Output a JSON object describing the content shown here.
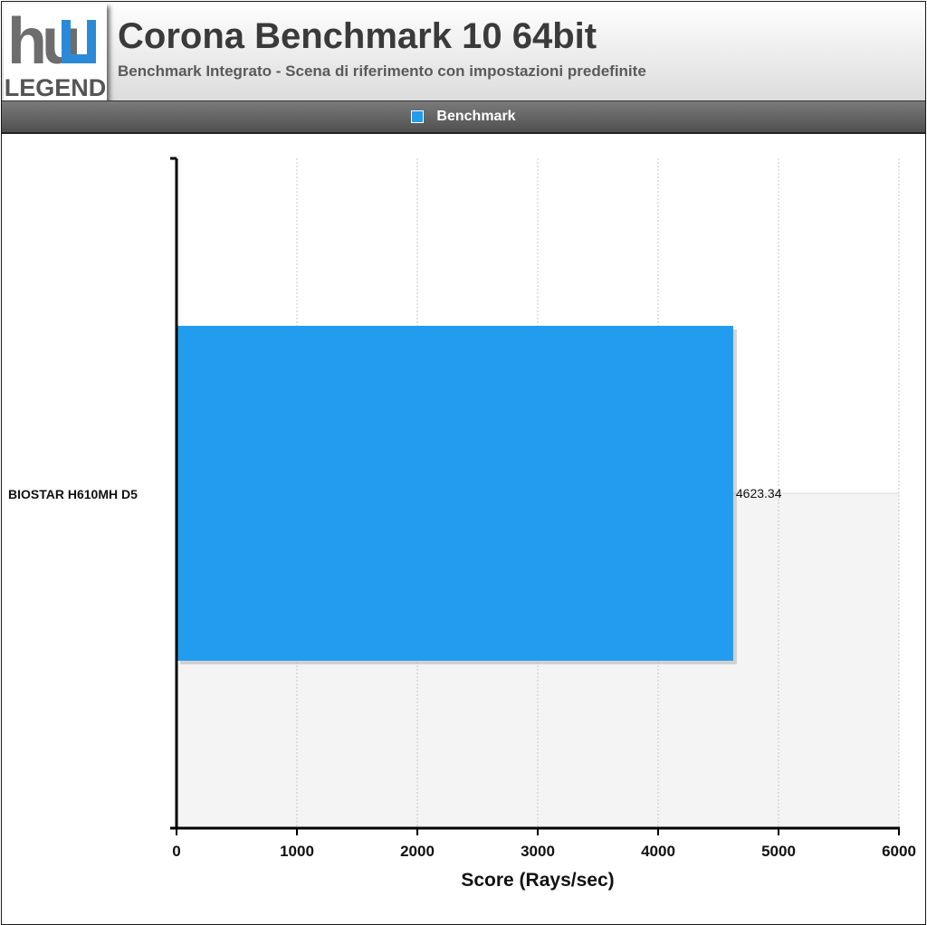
{
  "header": {
    "logo_text": "LEGEND",
    "logo_letters": "hu",
    "title": "Corona Benchmark 10 64bit",
    "subtitle": "Benchmark Integrato - Scena di riferimento con impostazioni predefinite"
  },
  "colors": {
    "bar": "#229cef",
    "logo_accent": "#2a8ad8"
  },
  "chart_data": {
    "type": "bar",
    "orientation": "horizontal",
    "categories": [
      "BIOSTAR H610MH D5"
    ],
    "series": [
      {
        "name": "Benchmark",
        "values": [
          4623.34
        ],
        "value_labels": [
          "4623.34"
        ]
      }
    ],
    "xlabel": "Score (Rays/sec)",
    "ylabel": "",
    "xlim": [
      0,
      6000
    ],
    "xticks": [
      0,
      1000,
      2000,
      3000,
      4000,
      5000,
      6000
    ],
    "legend_position": "top-center",
    "grid": true
  }
}
